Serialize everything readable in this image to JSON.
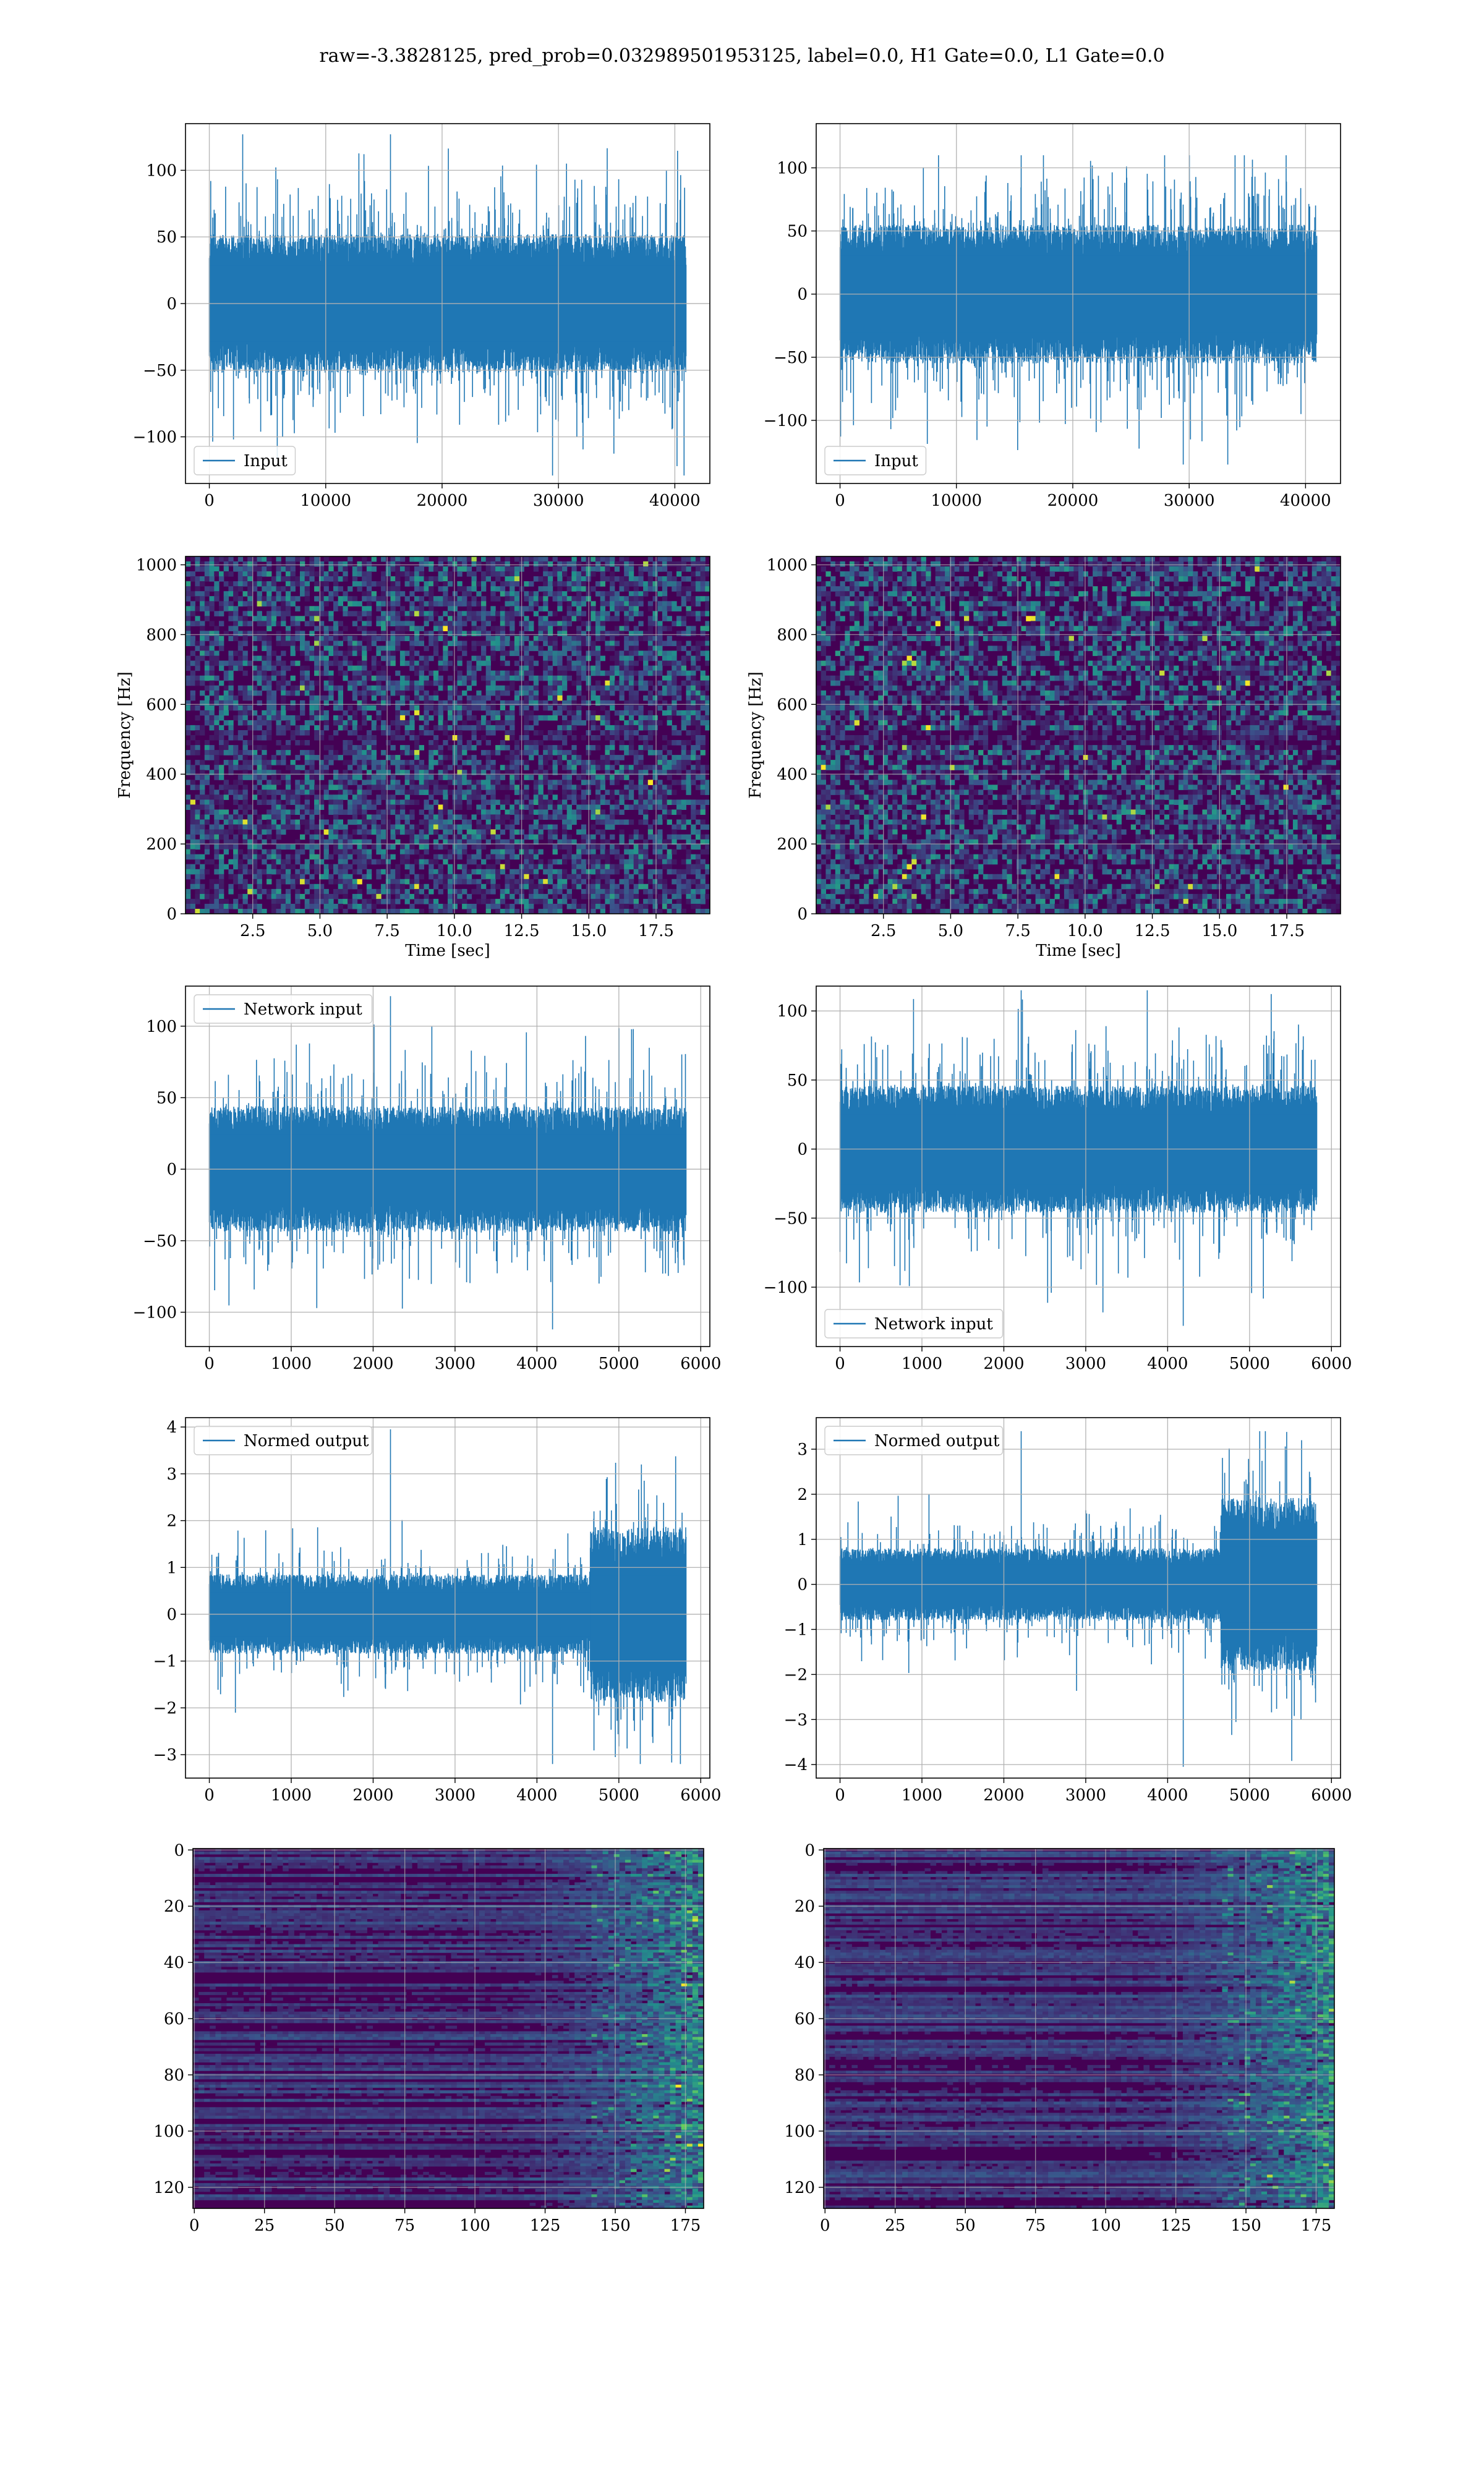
{
  "figure": {
    "title": "raw=-3.3828125, pred_prob=0.032989501953125, label=0.0, H1 Gate=0.0, L1 Gate=0.0",
    "colors": {
      "series": "#1f77b4",
      "grid": "#b0b0b0",
      "axes": "#000000",
      "cmap": [
        "#440154",
        "#31688e",
        "#35b779",
        "#fde725"
      ]
    }
  },
  "chart_data": [
    {
      "id": "p1",
      "row": 1,
      "col": 1,
      "type": "line",
      "series": [
        {
          "name": "Input"
        }
      ],
      "legend": "lower left",
      "x_range": [
        0,
        40960
      ],
      "xlim": [
        -2048,
        43008
      ],
      "ylim": [
        -135,
        135
      ],
      "xticks": [
        0,
        10000,
        20000,
        30000,
        40000
      ],
      "yticks": [
        -100,
        -50,
        0,
        50,
        100
      ],
      "xtick_labels": [
        "0",
        "10000",
        "20000",
        "30000",
        "40000"
      ],
      "ytick_labels": [
        "−100",
        "−50",
        "0",
        "50",
        "100"
      ],
      "envelope": {
        "core": 52,
        "max": 127,
        "min": -129,
        "spike_rate": 0.35
      },
      "grid": true
    },
    {
      "id": "p2",
      "row": 1,
      "col": 2,
      "type": "line",
      "series": [
        {
          "name": "Input"
        }
      ],
      "legend": "lower left",
      "x_range": [
        0,
        40960
      ],
      "xlim": [
        -2048,
        43008
      ],
      "ylim": [
        -150,
        135
      ],
      "xticks": [
        0,
        10000,
        20000,
        30000,
        40000
      ],
      "yticks": [
        -100,
        -50,
        0,
        50,
        100
      ],
      "xtick_labels": [
        "0",
        "10000",
        "20000",
        "30000",
        "40000"
      ],
      "ytick_labels": [
        "−100",
        "−50",
        "0",
        "50",
        "100"
      ],
      "envelope": {
        "core": 55,
        "max": 110,
        "min": -135,
        "spike_rate": 0.35
      },
      "grid": true
    },
    {
      "id": "p3",
      "row": 2,
      "col": 1,
      "type": "heatmap",
      "kind": "spectrogram",
      "xlim": [
        0,
        19.5
      ],
      "ylim": [
        0,
        1024
      ],
      "xticks": [
        2.5,
        5.0,
        7.5,
        10.0,
        12.5,
        15.0,
        17.5
      ],
      "xtick_labels": [
        "2.5",
        "5.0",
        "7.5",
        "10.0",
        "12.5",
        "15.0",
        "17.5"
      ],
      "yticks": [
        0,
        200,
        400,
        600,
        800,
        1000
      ],
      "ytick_labels": [
        "0",
        "200",
        "400",
        "600",
        "800",
        "1000"
      ],
      "xlabel": "Time [sec]",
      "ylabel": "Frequency [Hz]",
      "grid": true,
      "seed": 11
    },
    {
      "id": "p4",
      "row": 2,
      "col": 2,
      "type": "heatmap",
      "kind": "spectrogram",
      "xlim": [
        0,
        19.5
      ],
      "ylim": [
        0,
        1024
      ],
      "xticks": [
        2.5,
        5.0,
        7.5,
        10.0,
        12.5,
        15.0,
        17.5
      ],
      "xtick_labels": [
        "2.5",
        "5.0",
        "7.5",
        "10.0",
        "12.5",
        "15.0",
        "17.5"
      ],
      "yticks": [
        0,
        200,
        400,
        600,
        800,
        1000
      ],
      "ytick_labels": [
        "0",
        "200",
        "400",
        "600",
        "800",
        "1000"
      ],
      "xlabel": "Time [sec]",
      "ylabel": "Frequency [Hz]",
      "grid": true,
      "seed": 23
    },
    {
      "id": "p5",
      "row": 3,
      "col": 1,
      "type": "line",
      "series": [
        {
          "name": "Network input"
        }
      ],
      "legend": "upper left",
      "x_range": [
        0,
        5820
      ],
      "xlim": [
        -291,
        6111
      ],
      "ylim": [
        -124,
        128
      ],
      "xticks": [
        0,
        1000,
        2000,
        3000,
        4000,
        5000,
        6000
      ],
      "yticks": [
        -100,
        -50,
        0,
        50,
        100
      ],
      "xtick_labels": [
        "0",
        "1000",
        "2000",
        "3000",
        "4000",
        "5000",
        "6000"
      ],
      "ytick_labels": [
        "−100",
        "−50",
        "0",
        "50",
        "100"
      ],
      "envelope": {
        "core": 44,
        "max": 121,
        "min": -112,
        "spike_rate": 0.3
      },
      "grid": true
    },
    {
      "id": "p6",
      "row": 3,
      "col": 2,
      "type": "line",
      "series": [
        {
          "name": "Network input"
        }
      ],
      "legend": "lower left",
      "x_range": [
        0,
        5820
      ],
      "xlim": [
        -291,
        6111
      ],
      "ylim": [
        -143,
        118
      ],
      "xticks": [
        0,
        1000,
        2000,
        3000,
        4000,
        5000,
        6000
      ],
      "yticks": [
        -100,
        -50,
        0,
        50,
        100
      ],
      "xtick_labels": [
        "0",
        "1000",
        "2000",
        "3000",
        "4000",
        "5000",
        "6000"
      ],
      "ytick_labels": [
        "−100",
        "−50",
        "0",
        "50",
        "100"
      ],
      "envelope": {
        "core": 46,
        "max": 115,
        "min": -128,
        "spike_rate": 0.3
      },
      "grid": true
    },
    {
      "id": "p7",
      "row": 4,
      "col": 1,
      "type": "line",
      "series": [
        {
          "name": "Normed output"
        }
      ],
      "legend": "upper left",
      "x_range": [
        0,
        5820
      ],
      "xlim": [
        -291,
        6111
      ],
      "ylim": [
        -3.5,
        4.2
      ],
      "xticks": [
        0,
        1000,
        2000,
        3000,
        4000,
        5000,
        6000
      ],
      "yticks": [
        -3,
        -2,
        -1,
        0,
        1,
        2,
        3,
        4
      ],
      "xtick_labels": [
        "0",
        "1000",
        "2000",
        "3000",
        "4000",
        "5000",
        "6000"
      ],
      "ytick_labels": [
        "−3",
        "−2",
        "−1",
        "0",
        "1",
        "2",
        "3",
        "4"
      ],
      "envelope": {
        "core": 0.85,
        "max": 3.95,
        "min": -3.2,
        "spike_rate": 0.3,
        "burst_start": 4650,
        "burst_gain": 2.2
      },
      "grid": true
    },
    {
      "id": "p8",
      "row": 4,
      "col": 2,
      "type": "line",
      "series": [
        {
          "name": "Normed output"
        }
      ],
      "legend": "upper left",
      "x_range": [
        0,
        5820
      ],
      "xlim": [
        -291,
        6111
      ],
      "ylim": [
        -4.3,
        3.7
      ],
      "xticks": [
        0,
        1000,
        2000,
        3000,
        4000,
        5000,
        6000
      ],
      "yticks": [
        -4,
        -3,
        -2,
        -1,
        0,
        1,
        2,
        3
      ],
      "xtick_labels": [
        "0",
        "1000",
        "2000",
        "3000",
        "4000",
        "5000",
        "6000"
      ],
      "ytick_labels": [
        "−4",
        "−3",
        "−2",
        "−1",
        "0",
        "1",
        "2",
        "3"
      ],
      "envelope": {
        "core": 0.8,
        "max": 3.4,
        "min": -4.05,
        "spike_rate": 0.3,
        "burst_start": 4650,
        "burst_gain": 2.4
      },
      "grid": true
    },
    {
      "id": "p9",
      "row": 5,
      "col": 1,
      "type": "heatmap",
      "kind": "feature_map",
      "xlim": [
        -0.5,
        181.5
      ],
      "ylim": [
        127.5,
        -0.5
      ],
      "x_cells": 182,
      "y_cells": 128,
      "xticks": [
        0,
        25,
        50,
        75,
        100,
        125,
        150,
        175
      ],
      "xtick_labels": [
        "0",
        "25",
        "50",
        "75",
        "100",
        "125",
        "150",
        "175"
      ],
      "yticks": [
        0,
        20,
        40,
        60,
        80,
        100,
        120
      ],
      "ytick_labels": [
        "0",
        "20",
        "40",
        "60",
        "80",
        "100",
        "120"
      ],
      "grid": true,
      "seed": 5
    },
    {
      "id": "p10",
      "row": 5,
      "col": 2,
      "type": "heatmap",
      "kind": "feature_map",
      "xlim": [
        -0.5,
        181.5
      ],
      "ylim": [
        127.5,
        -0.5
      ],
      "x_cells": 182,
      "y_cells": 128,
      "xticks": [
        0,
        25,
        50,
        75,
        100,
        125,
        150,
        175
      ],
      "xtick_labels": [
        "0",
        "25",
        "50",
        "75",
        "100",
        "125",
        "150",
        "175"
      ],
      "yticks": [
        0,
        20,
        40,
        60,
        80,
        100,
        120
      ],
      "ytick_labels": [
        "0",
        "20",
        "40",
        "60",
        "80",
        "100",
        "120"
      ],
      "grid": true,
      "seed": 41
    }
  ]
}
